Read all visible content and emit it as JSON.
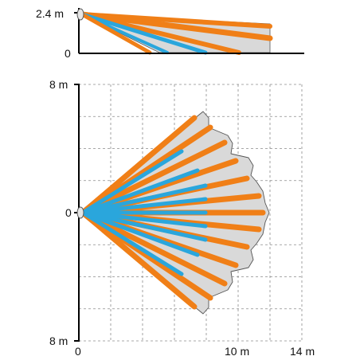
{
  "side_view": {
    "height_label": "2.4 m",
    "zero_label": "0",
    "height_m": 2.4,
    "range_m": 12
  },
  "top_view": {
    "y_top_label": "8 m",
    "y_zero_label": "0",
    "y_bottom_label": "8 m",
    "x_zero_label": "0",
    "x_mid_label": "10 m",
    "x_max_label": "14 m",
    "range_m": 12,
    "short_range_m": 7.5,
    "half_width_m": 8,
    "x_max_m": 14
  },
  "colors": {
    "long_range_beam": "#f07f17",
    "short_range_beam": "#2aa6dc",
    "coverage_area": "#d9d9d9",
    "coverage_outline": "#555555",
    "axis": "#000000",
    "grid": "#8c8c8c"
  },
  "icons": {
    "sensor": "motion-sensor-icon"
  }
}
